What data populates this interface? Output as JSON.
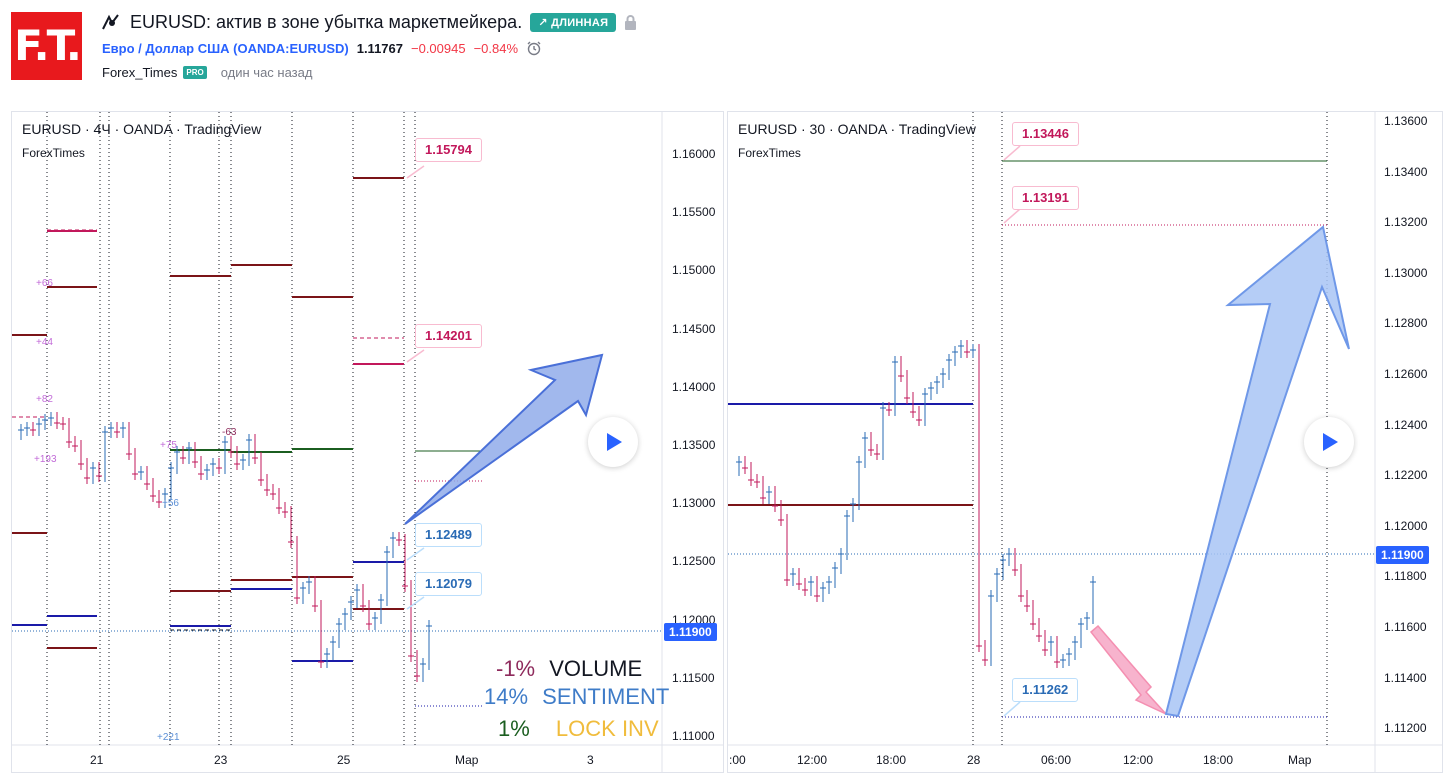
{
  "header": {
    "logo_text": "F.T.",
    "title": "EURUSD: актив в зоне убытка маркетмейкера.",
    "badge": "↗ ДЛИННАЯ",
    "symbol": "Евро / Доллар США (OANDA:EURUSD)",
    "price": "1.11767",
    "change": "−0.00945",
    "change_pct": "−0.84%",
    "author": "Forex_Times",
    "author_badge": "PRO",
    "published": "один час назад"
  },
  "left": {
    "title": "EURUSD · 4Ч · OANDA · TradingView",
    "sub": "ForexTimes",
    "callouts": [
      "1.15794",
      "1.14201",
      "1.12489",
      "1.12079"
    ],
    "price_axis": [
      "1.16000",
      "1.15500",
      "1.15000",
      "1.14500",
      "1.14000",
      "1.13500",
      "1.13000",
      "1.12500",
      "1.12000",
      "1.11500",
      "1.11000"
    ],
    "price_tag": "1.11900",
    "time_axis": [
      "21",
      "23",
      "25",
      "Мар",
      "3"
    ],
    "annotations": [
      "+66",
      "+44",
      "+82",
      "+75",
      "-63",
      "+193",
      "+56",
      "+221"
    ],
    "stats": [
      {
        "pct": "-1%",
        "label": "VOLUME"
      },
      {
        "pct": "14%",
        "label": "SENTIMENT"
      },
      {
        "pct": "1%",
        "label": "LOCK INV"
      }
    ]
  },
  "right": {
    "title": "EURUSD · 30 · OANDA · TradingView",
    "sub": "ForexTimes",
    "callouts": [
      "1.13446",
      "1.13191",
      "1.11262"
    ],
    "price_axis": [
      "1.13600",
      "1.13400",
      "1.13200",
      "1.13000",
      "1.12800",
      "1.12600",
      "1.12400",
      "1.12200",
      "1.12000",
      "1.11800",
      "1.11600",
      "1.11400",
      "1.11200"
    ],
    "price_tag": "1.11900",
    "time_axis": [
      ":00",
      "12:00",
      "18:00",
      "28",
      "06:00",
      "12:00",
      "18:00",
      "Мар"
    ]
  },
  "colors": {
    "accent": "#2962ff",
    "badge": "#26a69a",
    "down": "#f23645",
    "logo": "#e8191d"
  }
}
